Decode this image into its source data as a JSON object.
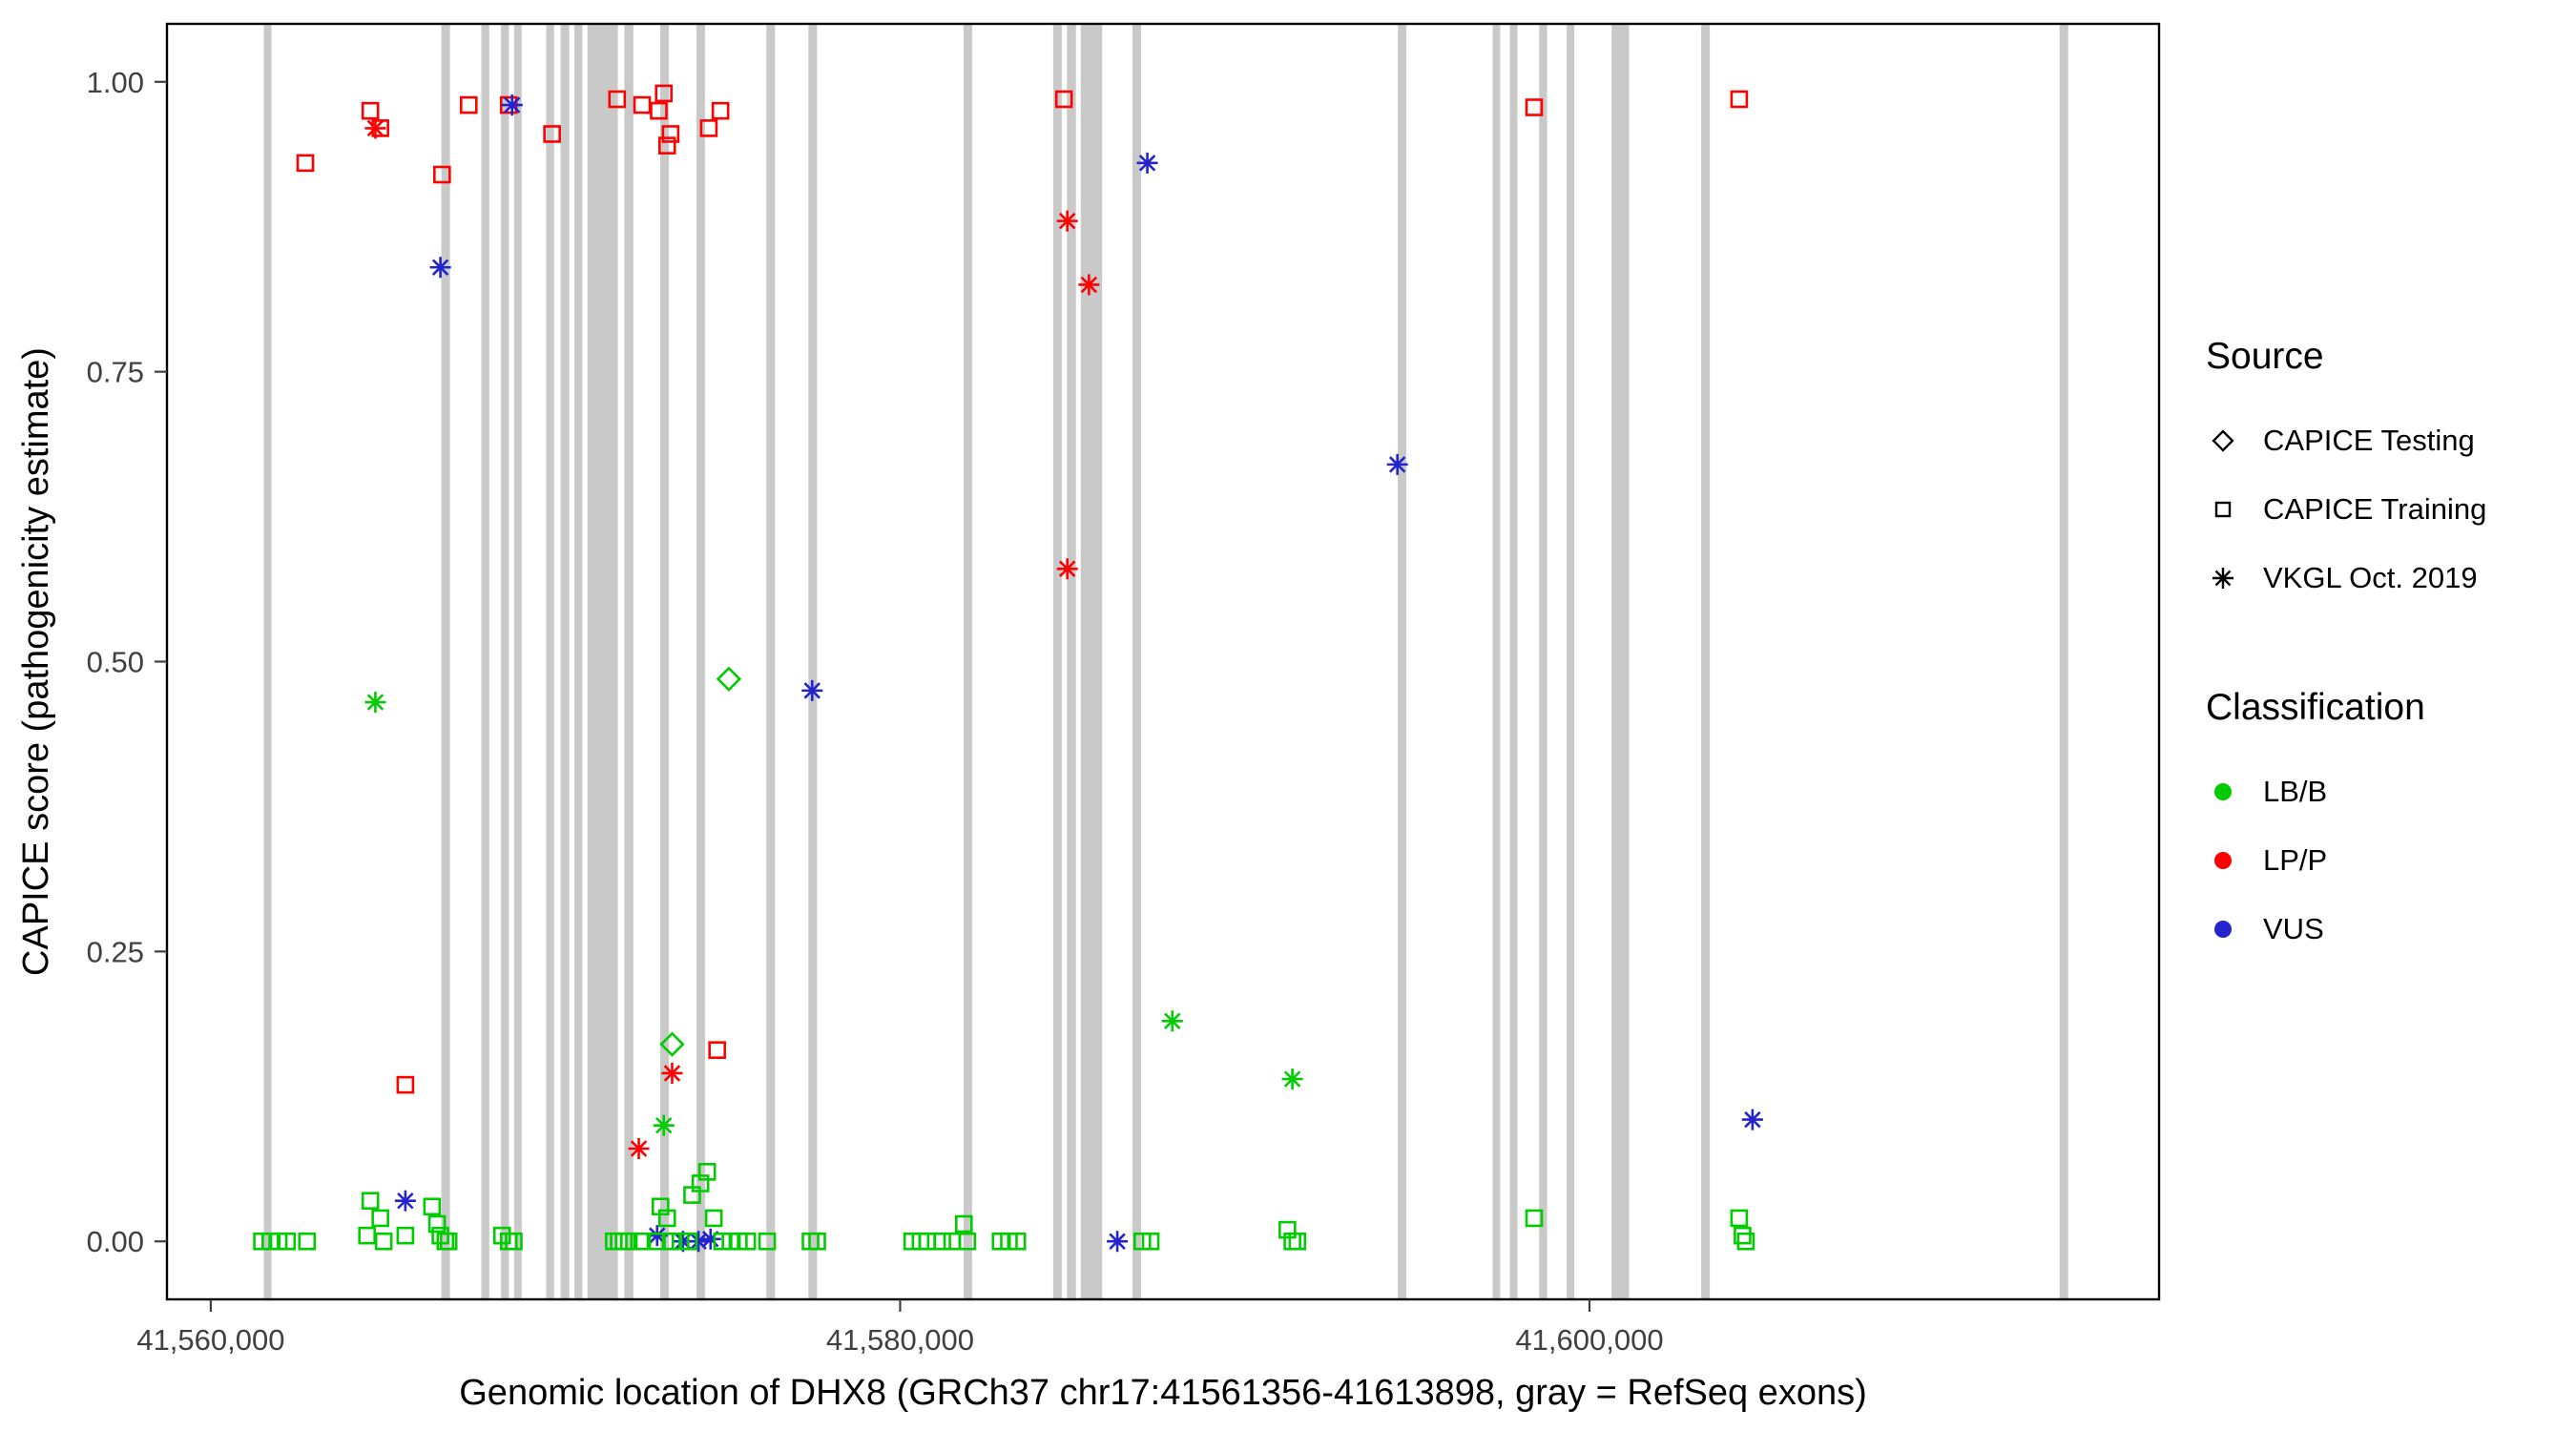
{
  "figure": {
    "background": "#ffffff",
    "panel_border_color": "#000000",
    "tick_text_color": "#404040"
  },
  "legend": {
    "source": {
      "title": "Source",
      "items": [
        {
          "label": "CAPICE Testing",
          "shape": "diamond"
        },
        {
          "label": "CAPICE Training",
          "shape": "square"
        },
        {
          "label": "VKGL Oct. 2019",
          "shape": "asterisk"
        }
      ]
    },
    "classification": {
      "title": "Classification",
      "items": [
        {
          "label": "LB/B",
          "color": "#00cc00"
        },
        {
          "label": "LP/P",
          "color": "#ff0000"
        },
        {
          "label": "VUS",
          "color": "#2424cc"
        }
      ]
    }
  },
  "chart_data": {
    "type": "scatter",
    "title": "",
    "xlabel": "Genomic location of DHX8 (GRCh37 chr17:41561356-41613898, gray = RefSeq exons)",
    "ylabel": "CAPICE score (pathogenicity estimate)",
    "xlim": [
      41558729,
      41616525
    ],
    "ylim": [
      -0.05,
      1.05
    ],
    "x_ticks": [
      {
        "value": 41560000,
        "label": "41,560,000"
      },
      {
        "value": 41580000,
        "label": "41,580,000"
      },
      {
        "value": 41600000,
        "label": "41,600,000"
      }
    ],
    "y_ticks": [
      {
        "value": 0.0,
        "label": "0.00"
      },
      {
        "value": 0.25,
        "label": "0.25"
      },
      {
        "value": 0.5,
        "label": "0.50"
      },
      {
        "value": 0.75,
        "label": "0.75"
      },
      {
        "value": 1.0,
        "label": "1.00"
      }
    ],
    "exon_color": "#c9c9c9",
    "exons": [
      [
        41561540,
        41561760
      ],
      [
        41566690,
        41566940
      ],
      [
        41567850,
        41568080
      ],
      [
        41568420,
        41568650
      ],
      [
        41568800,
        41569020
      ],
      [
        41569730,
        41569960
      ],
      [
        41570150,
        41570400
      ],
      [
        41570550,
        41570780
      ],
      [
        41570930,
        41571810
      ],
      [
        41572000,
        41572260
      ],
      [
        41573040,
        41573290
      ],
      [
        41574090,
        41574340
      ],
      [
        41576120,
        41576370
      ],
      [
        41577340,
        41577590
      ],
      [
        41581840,
        41582090
      ],
      [
        41584440,
        41584690
      ],
      [
        41584840,
        41585100
      ],
      [
        41585240,
        41585860
      ],
      [
        41586740,
        41586990
      ],
      [
        41594440,
        41594690
      ],
      [
        41597190,
        41597410
      ],
      [
        41597690,
        41597910
      ],
      [
        41598540,
        41598770
      ],
      [
        41599340,
        41599560
      ],
      [
        41600640,
        41601150
      ],
      [
        41603240,
        41603490
      ],
      [
        41613640,
        41613890
      ]
    ],
    "shape_by_source": {
      "testing": "diamond",
      "training": "square",
      "vkgl": "asterisk"
    },
    "source_labels": {
      "testing": "CAPICE Testing",
      "training": "CAPICE Training",
      "vkgl": "VKGL Oct. 2019"
    },
    "color_by_class": {
      "LB/B": "#00cc00",
      "LP/P": "#ff0000",
      "VUS": "#2424cc"
    },
    "points": [
      {
        "x": 41562743,
        "y": 0.93,
        "s": "training",
        "c": "LP/P"
      },
      {
        "x": 41564630,
        "y": 0.975,
        "s": "training",
        "c": "LP/P"
      },
      {
        "x": 41564920,
        "y": 0.96,
        "s": "training",
        "c": "LP/P"
      },
      {
        "x": 41566710,
        "y": 0.92,
        "s": "training",
        "c": "LP/P"
      },
      {
        "x": 41567484,
        "y": 0.98,
        "s": "training",
        "c": "LP/P"
      },
      {
        "x": 41568645,
        "y": 0.98,
        "s": "training",
        "c": "LP/P"
      },
      {
        "x": 41569902,
        "y": 0.955,
        "s": "training",
        "c": "LP/P"
      },
      {
        "x": 41571789,
        "y": 0.985,
        "s": "training",
        "c": "LP/P"
      },
      {
        "x": 41572515,
        "y": 0.98,
        "s": "training",
        "c": "LP/P"
      },
      {
        "x": 41572998,
        "y": 0.975,
        "s": "training",
        "c": "LP/P"
      },
      {
        "x": 41573143,
        "y": 0.99,
        "s": "training",
        "c": "LP/P"
      },
      {
        "x": 41573340,
        "y": 0.955,
        "s": "training",
        "c": "LP/P"
      },
      {
        "x": 41573240,
        "y": 0.945,
        "s": "training",
        "c": "LP/P"
      },
      {
        "x": 41574449,
        "y": 0.96,
        "s": "training",
        "c": "LP/P"
      },
      {
        "x": 41574788,
        "y": 0.975,
        "s": "training",
        "c": "LP/P"
      },
      {
        "x": 41584753,
        "y": 0.985,
        "s": "training",
        "c": "LP/P"
      },
      {
        "x": 41598394,
        "y": 0.978,
        "s": "training",
        "c": "LP/P"
      },
      {
        "x": 41604343,
        "y": 0.985,
        "s": "training",
        "c": "LP/P"
      },
      {
        "x": 41565646,
        "y": 0.135,
        "s": "training",
        "c": "LP/P"
      },
      {
        "x": 41574691,
        "y": 0.165,
        "s": "training",
        "c": "LP/P"
      },
      {
        "x": 41564775,
        "y": 0.96,
        "s": "vkgl",
        "c": "LP/P"
      },
      {
        "x": 41584850,
        "y": 0.88,
        "s": "vkgl",
        "c": "LP/P"
      },
      {
        "x": 41585478,
        "y": 0.825,
        "s": "vkgl",
        "c": "LP/P"
      },
      {
        "x": 41584850,
        "y": 0.58,
        "s": "vkgl",
        "c": "LP/P"
      },
      {
        "x": 41573385,
        "y": 0.145,
        "s": "vkgl",
        "c": "LP/P"
      },
      {
        "x": 41572418,
        "y": 0.08,
        "s": "vkgl",
        "c": "LP/P"
      },
      {
        "x": 41566662,
        "y": 0.84,
        "s": "vkgl",
        "c": "VUS"
      },
      {
        "x": 41568742,
        "y": 0.98,
        "s": "vkgl",
        "c": "VUS"
      },
      {
        "x": 41587172,
        "y": 0.93,
        "s": "vkgl",
        "c": "VUS"
      },
      {
        "x": 41594427,
        "y": 0.67,
        "s": "vkgl",
        "c": "VUS"
      },
      {
        "x": 41577448,
        "y": 0.475,
        "s": "vkgl",
        "c": "VUS"
      },
      {
        "x": 41604730,
        "y": 0.105,
        "s": "vkgl",
        "c": "VUS"
      },
      {
        "x": 41565646,
        "y": 0.035,
        "s": "vkgl",
        "c": "VUS"
      },
      {
        "x": 41572950,
        "y": 0.005,
        "s": "vkgl",
        "c": "VUS"
      },
      {
        "x": 41573700,
        "y": 0.0,
        "s": "vkgl",
        "c": "VUS"
      },
      {
        "x": 41574150,
        "y": 0.0,
        "s": "vkgl",
        "c": "VUS"
      },
      {
        "x": 41574500,
        "y": 0.002,
        "s": "vkgl",
        "c": "VUS"
      },
      {
        "x": 41586301,
        "y": 0.0,
        "s": "vkgl",
        "c": "VUS"
      },
      {
        "x": 41575030,
        "y": 0.485,
        "s": "testing",
        "c": "LB/B"
      },
      {
        "x": 41573385,
        "y": 0.17,
        "s": "testing",
        "c": "LB/B"
      },
      {
        "x": 41564775,
        "y": 0.465,
        "s": "vkgl",
        "c": "LB/B"
      },
      {
        "x": 41573143,
        "y": 0.1,
        "s": "vkgl",
        "c": "LB/B"
      },
      {
        "x": 41587897,
        "y": 0.19,
        "s": "vkgl",
        "c": "LB/B"
      },
      {
        "x": 41591380,
        "y": 0.14,
        "s": "vkgl",
        "c": "LB/B"
      },
      {
        "x": 41561486,
        "y": 0.0,
        "s": "training",
        "c": "LB/B"
      },
      {
        "x": 41561728,
        "y": 0.0,
        "s": "training",
        "c": "LB/B"
      },
      {
        "x": 41561970,
        "y": 0.0,
        "s": "training",
        "c": "LB/B"
      },
      {
        "x": 41562211,
        "y": 0.0,
        "s": "training",
        "c": "LB/B"
      },
      {
        "x": 41562792,
        "y": 0.0,
        "s": "training",
        "c": "LB/B"
      },
      {
        "x": 41564533,
        "y": 0.005,
        "s": "training",
        "c": "LB/B"
      },
      {
        "x": 41564630,
        "y": 0.035,
        "s": "training",
        "c": "LB/B"
      },
      {
        "x": 41564920,
        "y": 0.02,
        "s": "training",
        "c": "LB/B"
      },
      {
        "x": 41565017,
        "y": 0.0,
        "s": "training",
        "c": "LB/B"
      },
      {
        "x": 41565646,
        "y": 0.005,
        "s": "training",
        "c": "LB/B"
      },
      {
        "x": 41566420,
        "y": 0.03,
        "s": "training",
        "c": "LB/B"
      },
      {
        "x": 41566565,
        "y": 0.015,
        "s": "training",
        "c": "LB/B"
      },
      {
        "x": 41566662,
        "y": 0.005,
        "s": "training",
        "c": "LB/B"
      },
      {
        "x": 41566807,
        "y": 0.0,
        "s": "training",
        "c": "LB/B"
      },
      {
        "x": 41566900,
        "y": 0.0,
        "s": "training",
        "c": "LB/B"
      },
      {
        "x": 41568451,
        "y": 0.005,
        "s": "training",
        "c": "LB/B"
      },
      {
        "x": 41568645,
        "y": 0.0,
        "s": "training",
        "c": "LB/B"
      },
      {
        "x": 41568790,
        "y": 0.0,
        "s": "training",
        "c": "LB/B"
      },
      {
        "x": 41571692,
        "y": 0.0,
        "s": "training",
        "c": "LB/B"
      },
      {
        "x": 41571837,
        "y": 0.0,
        "s": "training",
        "c": "LB/B"
      },
      {
        "x": 41571982,
        "y": 0.0,
        "s": "training",
        "c": "LB/B"
      },
      {
        "x": 41572128,
        "y": 0.0,
        "s": "training",
        "c": "LB/B"
      },
      {
        "x": 41572515,
        "y": 0.0,
        "s": "training",
        "c": "LB/B"
      },
      {
        "x": 41572902,
        "y": 0.0,
        "s": "training",
        "c": "LB/B"
      },
      {
        "x": 41573047,
        "y": 0.03,
        "s": "training",
        "c": "LB/B"
      },
      {
        "x": 41573240,
        "y": 0.02,
        "s": "training",
        "c": "LB/B"
      },
      {
        "x": 41573385,
        "y": 0.0,
        "s": "training",
        "c": "LB/B"
      },
      {
        "x": 41573627,
        "y": 0.0,
        "s": "training",
        "c": "LB/B"
      },
      {
        "x": 41573869,
        "y": 0.0,
        "s": "training",
        "c": "LB/B"
      },
      {
        "x": 41573966,
        "y": 0.04,
        "s": "training",
        "c": "LB/B"
      },
      {
        "x": 41574207,
        "y": 0.05,
        "s": "training",
        "c": "LB/B"
      },
      {
        "x": 41574401,
        "y": 0.06,
        "s": "training",
        "c": "LB/B"
      },
      {
        "x": 41574594,
        "y": 0.02,
        "s": "training",
        "c": "LB/B"
      },
      {
        "x": 41574836,
        "y": 0.0,
        "s": "training",
        "c": "LB/B"
      },
      {
        "x": 41575078,
        "y": 0.0,
        "s": "training",
        "c": "LB/B"
      },
      {
        "x": 41575320,
        "y": 0.0,
        "s": "training",
        "c": "LB/B"
      },
      {
        "x": 41575562,
        "y": 0.0,
        "s": "training",
        "c": "LB/B"
      },
      {
        "x": 41576142,
        "y": 0.0,
        "s": "training",
        "c": "LB/B"
      },
      {
        "x": 41577400,
        "y": 0.0,
        "s": "training",
        "c": "LB/B"
      },
      {
        "x": 41577593,
        "y": 0.0,
        "s": "training",
        "c": "LB/B"
      },
      {
        "x": 41580351,
        "y": 0.0,
        "s": "training",
        "c": "LB/B"
      },
      {
        "x": 41580592,
        "y": 0.0,
        "s": "training",
        "c": "LB/B"
      },
      {
        "x": 41580786,
        "y": 0.0,
        "s": "training",
        "c": "LB/B"
      },
      {
        "x": 41581221,
        "y": 0.0,
        "s": "training",
        "c": "LB/B"
      },
      {
        "x": 41581512,
        "y": 0.0,
        "s": "training",
        "c": "LB/B"
      },
      {
        "x": 41581850,
        "y": 0.015,
        "s": "training",
        "c": "LB/B"
      },
      {
        "x": 41581947,
        "y": 0.0,
        "s": "training",
        "c": "LB/B"
      },
      {
        "x": 41582915,
        "y": 0.0,
        "s": "training",
        "c": "LB/B"
      },
      {
        "x": 41583156,
        "y": 0.0,
        "s": "training",
        "c": "LB/B"
      },
      {
        "x": 41583398,
        "y": 0.0,
        "s": "training",
        "c": "LB/B"
      },
      {
        "x": 41587026,
        "y": 0.0,
        "s": "training",
        "c": "LB/B"
      },
      {
        "x": 41587268,
        "y": 0.0,
        "s": "training",
        "c": "LB/B"
      },
      {
        "x": 41591235,
        "y": 0.01,
        "s": "training",
        "c": "LB/B"
      },
      {
        "x": 41591380,
        "y": 0.0,
        "s": "training",
        "c": "LB/B"
      },
      {
        "x": 41591525,
        "y": 0.0,
        "s": "training",
        "c": "LB/B"
      },
      {
        "x": 41598394,
        "y": 0.02,
        "s": "training",
        "c": "LB/B"
      },
      {
        "x": 41604343,
        "y": 0.02,
        "s": "training",
        "c": "LB/B"
      },
      {
        "x": 41604440,
        "y": 0.005,
        "s": "training",
        "c": "LB/B"
      },
      {
        "x": 41604536,
        "y": 0.0,
        "s": "training",
        "c": "LB/B"
      }
    ]
  }
}
